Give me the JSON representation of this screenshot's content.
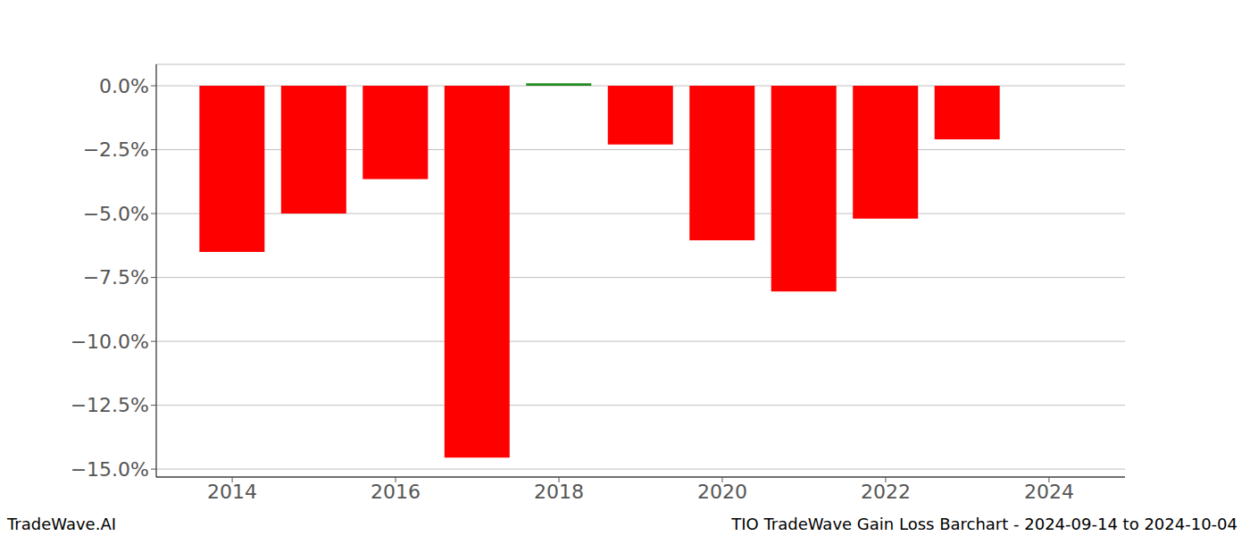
{
  "chart_data": {
    "type": "bar",
    "title": "TIO TradeWave Gain Loss Barchart - 2024-09-14 to 2024-10-04",
    "annotations": [
      "TradeWave.AI"
    ],
    "x": [
      2014,
      2015,
      2016,
      2017,
      2018,
      2019,
      2020,
      2021,
      2022,
      2023
    ],
    "values": [
      -6.5,
      -5.0,
      -3.65,
      -14.55,
      0.1,
      -2.3,
      -6.05,
      -8.05,
      -5.2,
      -2.1
    ],
    "colors": [
      "#ff0000",
      "#ff0000",
      "#ff0000",
      "#ff0000",
      "#228b22",
      "#ff0000",
      "#ff0000",
      "#ff0000",
      "#ff0000",
      "#ff0000"
    ],
    "xlim": [
      2013.07,
      2024.93
    ],
    "xticks": [
      2014,
      2016,
      2018,
      2020,
      2022,
      2024
    ],
    "ylim": [
      -15.31,
      0.84
    ],
    "yticks": [
      {
        "value": -15,
        "label": "−15.0%"
      },
      {
        "value": -12.5,
        "label": "−12.5%"
      },
      {
        "value": -10,
        "label": "−10.0%"
      },
      {
        "value": -7.5,
        "label": "−7.5%"
      },
      {
        "value": -5,
        "label": "−5.0%"
      },
      {
        "value": -2.5,
        "label": "−2.5%"
      },
      {
        "value": 0,
        "label": "0.0%"
      }
    ],
    "grid": "y"
  }
}
